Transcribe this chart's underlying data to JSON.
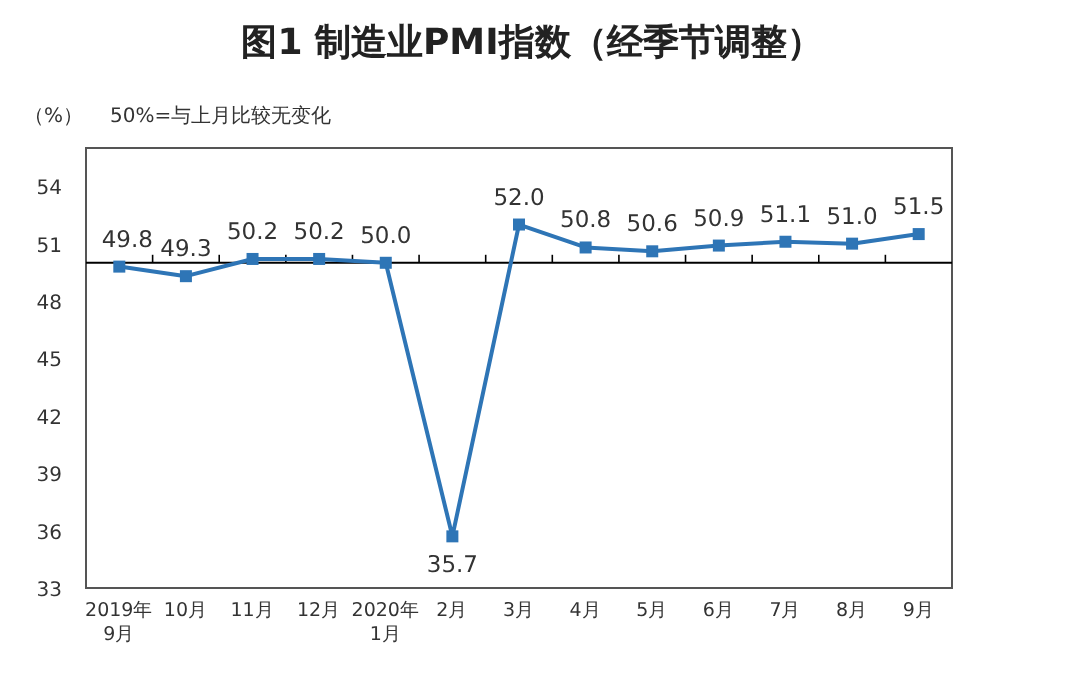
{
  "chart_data": {
    "type": "line",
    "title": "图1  制造业PMI指数（经季节调整）",
    "ylabel": "（%）",
    "annotations": [
      "50%=与上月比较无变化"
    ],
    "categories": [
      "2019年9月",
      "10月",
      "11月",
      "12月",
      "2020年1月",
      "2月",
      "3月",
      "4月",
      "5月",
      "6月",
      "7月",
      "8月",
      "9月"
    ],
    "series": [
      {
        "color": "#2e75b6",
        "values": [
          49.8,
          49.3,
          50.2,
          50.2,
          50.0,
          35.7,
          52.0,
          50.8,
          50.6,
          50.9,
          51.1,
          51.0,
          51.5
        ],
        "value_labels": [
          "49.8",
          "49.3",
          "50.2",
          "50.2",
          "50.0",
          "35.7",
          "52.0",
          "50.8",
          "50.6",
          "50.9",
          "51.1",
          "51.0",
          "51.5"
        ]
      }
    ],
    "ylim": [
      33,
      56
    ],
    "yticks": [
      33,
      36,
      39,
      42,
      45,
      48,
      51,
      54
    ],
    "ref_lines": [
      {
        "axis": "y",
        "value": 50,
        "color": "#000000"
      }
    ],
    "marker": "square"
  }
}
